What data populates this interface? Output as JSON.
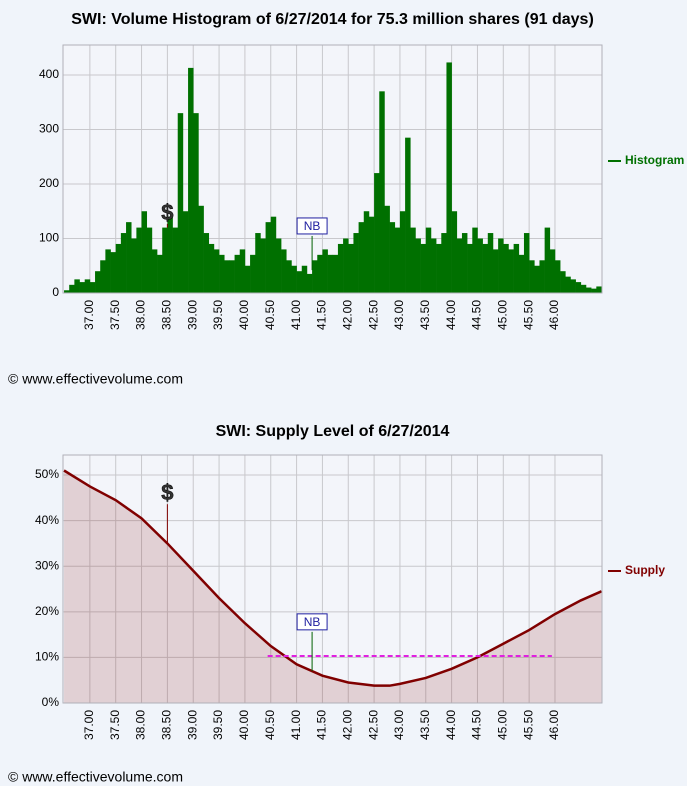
{
  "chart_data": [
    {
      "type": "histogram",
      "title": "SWI: Volume Histogram of 6/27/2014 for 75.3 million shares (91 days)",
      "bins": [
        36.5,
        36.6,
        36.7,
        36.8,
        36.9,
        37.0,
        37.1,
        37.2,
        37.3,
        37.4,
        37.5,
        37.6,
        37.7,
        37.8,
        37.9,
        38.0,
        38.1,
        38.2,
        38.3,
        38.4,
        38.5,
        38.6,
        38.7,
        38.8,
        38.9,
        39.0,
        39.1,
        39.2,
        39.3,
        39.4,
        39.5,
        39.6,
        39.7,
        39.8,
        39.9,
        40.0,
        40.1,
        40.2,
        40.3,
        40.4,
        40.5,
        40.6,
        40.7,
        40.8,
        40.9,
        41.0,
        41.1,
        41.2,
        41.3,
        41.4,
        41.5,
        41.6,
        41.7,
        41.8,
        41.9,
        42.0,
        42.1,
        42.2,
        42.3,
        42.4,
        42.5,
        42.6,
        42.7,
        42.8,
        42.9,
        43.0,
        43.1,
        43.2,
        43.3,
        43.4,
        43.5,
        43.6,
        43.7,
        43.8,
        43.9,
        44.0,
        44.1,
        44.2,
        44.3,
        44.4,
        44.5,
        44.6,
        44.7,
        44.8,
        44.9,
        45.0,
        45.1,
        45.2,
        45.3,
        45.4,
        45.5,
        45.6,
        45.7,
        45.8,
        45.9,
        46.0,
        46.1,
        46.2,
        46.3,
        46.4,
        46.5,
        46.6,
        46.7,
        46.8,
        46.9
      ],
      "series": [
        {
          "name": "Histogram",
          "color": "#007000",
          "values": [
            5,
            15,
            25,
            20,
            25,
            20,
            40,
            60,
            80,
            75,
            90,
            110,
            130,
            100,
            120,
            150,
            120,
            80,
            70,
            120,
            140,
            120,
            330,
            150,
            413,
            330,
            160,
            110,
            90,
            80,
            70,
            60,
            60,
            70,
            80,
            50,
            70,
            110,
            100,
            130,
            140,
            100,
            80,
            60,
            50,
            40,
            50,
            35,
            60,
            70,
            80,
            70,
            70,
            90,
            100,
            90,
            110,
            130,
            150,
            140,
            220,
            370,
            160,
            130,
            120,
            150,
            285,
            120,
            100,
            90,
            120,
            100,
            90,
            110,
            423,
            150,
            100,
            110,
            90,
            120,
            100,
            90,
            110,
            80,
            100,
            90,
            80,
            90,
            70,
            110,
            60,
            50,
            60,
            120,
            80,
            60,
            40,
            30,
            25,
            20,
            15,
            10,
            8,
            12
          ]
        }
      ],
      "xlim": [
        36.48,
        46.91
      ],
      "xticks": [
        {
          "value": 37,
          "label": "37.00"
        },
        {
          "value": 37.5,
          "label": "37.50"
        },
        {
          "value": 38,
          "label": "38.00"
        },
        {
          "value": 38.5,
          "label": "38.50"
        },
        {
          "value": 39,
          "label": "39.00"
        },
        {
          "value": 39.5,
          "label": "39.50"
        },
        {
          "value": 40,
          "label": "40.00"
        },
        {
          "value": 40.5,
          "label": "40.50"
        },
        {
          "value": 41,
          "label": "41.00"
        },
        {
          "value": 41.5,
          "label": "41.50"
        },
        {
          "value": 42,
          "label": "42.00"
        },
        {
          "value": 42.5,
          "label": "42.50"
        },
        {
          "value": 43,
          "label": "43.00"
        },
        {
          "value": 43.5,
          "label": "43.50"
        },
        {
          "value": 44,
          "label": "44.00"
        },
        {
          "value": 44.5,
          "label": "44.50"
        },
        {
          "value": 45,
          "label": "45.00"
        },
        {
          "value": 45.5,
          "label": "45.50"
        },
        {
          "value": 46,
          "label": "46.00"
        }
      ],
      "ylim": [
        0,
        455
      ],
      "yticks": [
        0,
        100,
        200,
        300,
        400
      ],
      "grid": true,
      "legend": "right",
      "annotations": [
        {
          "text": "$",
          "x": 38.5,
          "y": 145,
          "y_end": 120
        },
        {
          "text": "NB",
          "x": 41.3,
          "y": 123,
          "y_end": 42
        }
      ],
      "footer": "© www.effectivevolume.com"
    },
    {
      "type": "area",
      "title": "SWI: Supply Level of 6/27/2014",
      "x": [
        36.5,
        37.0,
        37.5,
        38.0,
        38.5,
        39.0,
        39.5,
        40.0,
        40.5,
        41.0,
        41.5,
        42.0,
        42.5,
        42.8,
        43.0,
        43.5,
        44.0,
        44.5,
        45.0,
        45.5,
        46.0,
        46.5,
        46.9
      ],
      "series": [
        {
          "name": "Supply",
          "color": "#800000",
          "values": [
            51,
            47.5,
            44.5,
            40.5,
            35,
            29,
            23,
            17.5,
            12.5,
            8.5,
            6,
            4.5,
            3.8,
            3.8,
            4.2,
            5.5,
            7.5,
            10,
            13,
            16,
            19.5,
            22.5,
            24.5
          ]
        }
      ],
      "xlim": [
        36.48,
        46.91
      ],
      "xticks": [
        {
          "value": 37,
          "label": "37.00"
        },
        {
          "value": 37.5,
          "label": "37.50"
        },
        {
          "value": 38,
          "label": "38.00"
        },
        {
          "value": 38.5,
          "label": "38.50"
        },
        {
          "value": 39,
          "label": "39.00"
        },
        {
          "value": 39.5,
          "label": "39.50"
        },
        {
          "value": 40,
          "label": "40.00"
        },
        {
          "value": 40.5,
          "label": "40.50"
        },
        {
          "value": 41,
          "label": "41.00"
        },
        {
          "value": 41.5,
          "label": "41.50"
        },
        {
          "value": 42,
          "label": "42.00"
        },
        {
          "value": 42.5,
          "label": "42.50"
        },
        {
          "value": 43,
          "label": "43.00"
        },
        {
          "value": 43.5,
          "label": "43.50"
        },
        {
          "value": 44,
          "label": "44.00"
        },
        {
          "value": 44.5,
          "label": "44.50"
        },
        {
          "value": 45,
          "label": "45.00"
        },
        {
          "value": 45.5,
          "label": "45.50"
        },
        {
          "value": 46,
          "label": "46.00"
        }
      ],
      "ylim": [
        0,
        54.4
      ],
      "yticks": [
        {
          "value": 0,
          "label": "0%"
        },
        {
          "value": 10,
          "label": "10%"
        },
        {
          "value": 20,
          "label": "20%"
        },
        {
          "value": 30,
          "label": "30%"
        },
        {
          "value": 40,
          "label": "40%"
        },
        {
          "value": 50,
          "label": "50%"
        }
      ],
      "grid": true,
      "legend": "right",
      "reference_line": {
        "value": 10.3,
        "x": [
          40.44,
          45.94
        ],
        "color": "#e020e0"
      },
      "annotations": [
        {
          "text": "$",
          "x": 38.5,
          "y": 45.8,
          "y_end": 35
        },
        {
          "text": "NB",
          "x": 41.3,
          "y": 17.8,
          "y_end": 7
        }
      ],
      "footer": "© www.effectivevolume.com"
    }
  ]
}
